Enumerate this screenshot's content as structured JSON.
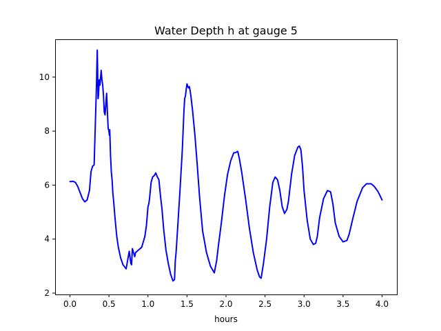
{
  "chart_data": {
    "type": "line",
    "title": "Water Depth h at gauge 5",
    "xlabel": "hours",
    "ylabel": "",
    "xlim": [
      -0.19,
      4.19
    ],
    "ylim": [
      1.95,
      11.4
    ],
    "xticks": [
      0.0,
      0.5,
      1.0,
      1.5,
      2.0,
      2.5,
      3.0,
      3.5,
      4.0
    ],
    "xtick_labels": [
      "0.0",
      "0.5",
      "1.0",
      "1.5",
      "2.0",
      "2.5",
      "3.0",
      "3.5",
      "4.0"
    ],
    "yticks": [
      2,
      4,
      6,
      8,
      10
    ],
    "ytick_labels": [
      "2",
      "4",
      "6",
      "8",
      "10"
    ],
    "grid": false,
    "series": [
      {
        "color": "#0000ff",
        "x": [
          0.0,
          0.04,
          0.07,
          0.1,
          0.13,
          0.16,
          0.19,
          0.22,
          0.25,
          0.27,
          0.29,
          0.31,
          0.34,
          0.345,
          0.35,
          0.355,
          0.36,
          0.365,
          0.375,
          0.385,
          0.4,
          0.41,
          0.42,
          0.43,
          0.44,
          0.45,
          0.47,
          0.48,
          0.49,
          0.5,
          0.505,
          0.51,
          0.52,
          0.53,
          0.54,
          0.55,
          0.56,
          0.58,
          0.6,
          0.62,
          0.65,
          0.68,
          0.72,
          0.76,
          0.78,
          0.79,
          0.8,
          0.81,
          0.82,
          0.83,
          0.84,
          0.86,
          0.88,
          0.9,
          0.92,
          0.94,
          0.96,
          0.98,
          1.0,
          1.01,
          1.02,
          1.04,
          1.06,
          1.08,
          1.1,
          1.12,
          1.14,
          1.16,
          1.18,
          1.2,
          1.23,
          1.26,
          1.29,
          1.32,
          1.34,
          1.35,
          1.36,
          1.38,
          1.41,
          1.44,
          1.45,
          1.46,
          1.47,
          1.48,
          1.49,
          1.5,
          1.51,
          1.52,
          1.53,
          1.54,
          1.55,
          1.57,
          1.6,
          1.63,
          1.66,
          1.7,
          1.75,
          1.8,
          1.85,
          1.88,
          1.9,
          1.94,
          1.98,
          2.02,
          2.06,
          2.1,
          2.12,
          2.15,
          2.17,
          2.2,
          2.25,
          2.3,
          2.35,
          2.4,
          2.43,
          2.45,
          2.48,
          2.52,
          2.56,
          2.6,
          2.63,
          2.66,
          2.69,
          2.72,
          2.75,
          2.78,
          2.8,
          2.84,
          2.88,
          2.92,
          2.94,
          2.96,
          2.98,
          3.0,
          3.04,
          3.08,
          3.12,
          3.15,
          3.17,
          3.2,
          3.25,
          3.3,
          3.34,
          3.37,
          3.4,
          3.45,
          3.5,
          3.55,
          3.58,
          3.62,
          3.68,
          3.75,
          3.8,
          3.86,
          3.9,
          3.95,
          4.0
        ],
        "values": [
          6.13,
          6.14,
          6.1,
          5.95,
          5.72,
          5.5,
          5.38,
          5.45,
          5.8,
          6.5,
          6.7,
          6.75,
          9.7,
          10.4,
          11.0,
          10.2,
          9.2,
          9.3,
          9.9,
          9.7,
          10.25,
          9.9,
          9.7,
          9.3,
          8.7,
          8.6,
          9.4,
          8.7,
          8.1,
          8.0,
          7.85,
          8.05,
          7.1,
          6.5,
          6.2,
          5.7,
          5.4,
          4.7,
          4.1,
          3.7,
          3.3,
          3.05,
          2.9,
          3.55,
          3.1,
          3.05,
          3.65,
          3.55,
          3.45,
          3.35,
          3.5,
          3.55,
          3.6,
          3.65,
          3.7,
          3.9,
          4.1,
          4.5,
          5.2,
          5.3,
          5.5,
          6.1,
          6.3,
          6.35,
          6.45,
          6.3,
          6.2,
          5.6,
          5.1,
          4.4,
          3.6,
          3.1,
          2.7,
          2.45,
          2.5,
          3.2,
          3.5,
          4.4,
          5.8,
          7.3,
          8.0,
          8.7,
          9.2,
          9.3,
          9.55,
          9.75,
          9.65,
          9.6,
          9.65,
          9.5,
          9.3,
          8.8,
          7.9,
          6.8,
          5.6,
          4.3,
          3.5,
          3.0,
          2.75,
          3.2,
          3.7,
          4.6,
          5.6,
          6.4,
          6.9,
          7.2,
          7.2,
          7.25,
          7.0,
          6.5,
          5.5,
          4.4,
          3.5,
          2.85,
          2.6,
          2.55,
          3.1,
          4.0,
          5.2,
          6.1,
          6.3,
          6.2,
          5.8,
          5.2,
          4.95,
          5.1,
          5.4,
          6.4,
          7.1,
          7.4,
          7.45,
          7.3,
          6.7,
          5.8,
          4.7,
          4.0,
          3.8,
          3.85,
          4.1,
          4.8,
          5.5,
          5.8,
          5.75,
          5.3,
          4.6,
          4.1,
          3.9,
          3.95,
          4.2,
          4.7,
          5.4,
          5.9,
          6.05,
          6.05,
          5.95,
          5.75,
          5.45
        ]
      }
    ]
  }
}
